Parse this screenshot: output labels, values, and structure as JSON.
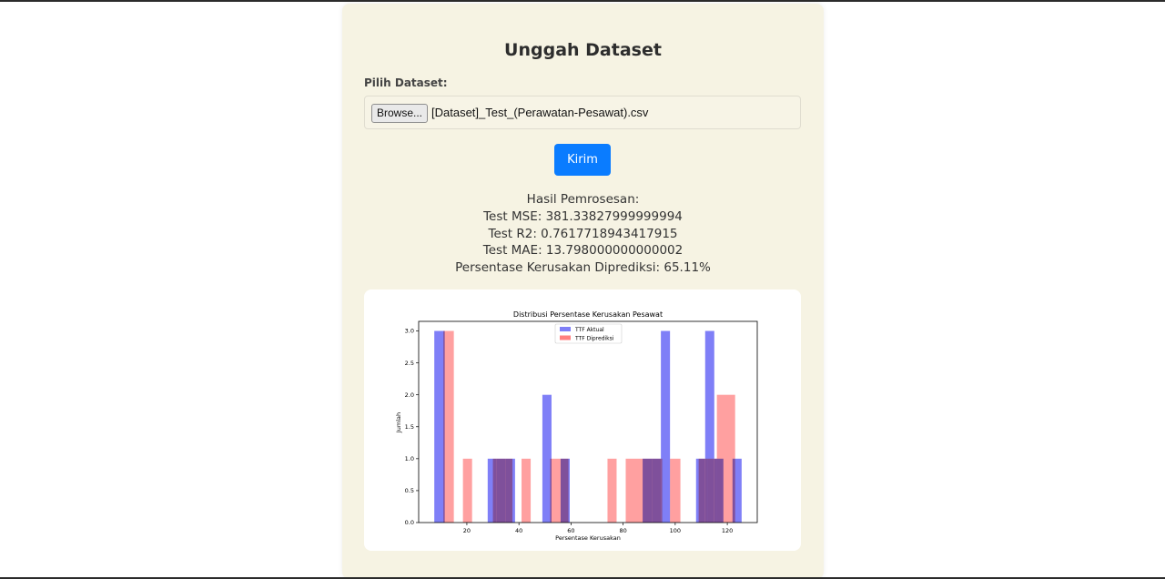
{
  "page": {
    "title": "Unggah Dataset",
    "file_label": "Pilih Dataset:",
    "browse_label": "Browse...",
    "file_name": "[Dataset]_Test_(Perawatan-Pesawat).csv",
    "submit_label": "Kirim"
  },
  "results": {
    "heading": "Hasil Pemrosesan:",
    "mse": "Test MSE: 381.33827999999994",
    "r2": "Test R2: 0.7617718943417915",
    "mae": "Test MAE: 13.798000000000002",
    "percent": "Persentase Kerusakan Diprediksi: 65.11%"
  },
  "colors": {
    "accent": "#0a7cff",
    "card_bg": "#f6f3e3",
    "actual": "#7f7ff7",
    "predicted": "#ff8080",
    "overlap": "#bf3f7b"
  },
  "chart_data": {
    "type": "bar",
    "title": "Distribusi Persentase Kerusakan Pesawat",
    "xlabel": "Persentase Kerusakan",
    "ylabel": "Jumlah",
    "xlim": [
      1.5,
      131.5
    ],
    "ylim": [
      0,
      3.15
    ],
    "xticks": [
      20,
      40,
      60,
      80,
      100,
      120
    ],
    "yticks": [
      0.0,
      0.5,
      1.0,
      1.5,
      2.0,
      2.5,
      3.0
    ],
    "ytick_labels": [
      "0.0",
      "0.5",
      "1.0",
      "1.5",
      "2.0",
      "2.5",
      "3.0"
    ],
    "legend": "top-center",
    "series": [
      {
        "name": "TTF Aktual",
        "bins": [
          {
            "x0": 7.5,
            "x1": 11.5,
            "value": 3
          },
          {
            "x0": 28,
            "x1": 31.5,
            "value": 1
          },
          {
            "x0": 31.5,
            "x1": 35,
            "value": 1
          },
          {
            "x0": 35,
            "x1": 38.5,
            "value": 1
          },
          {
            "x0": 49,
            "x1": 52.5,
            "value": 2
          },
          {
            "x0": 56,
            "x1": 59.5,
            "value": 1
          },
          {
            "x0": 87.5,
            "x1": 91,
            "value": 1
          },
          {
            "x0": 91,
            "x1": 94.5,
            "value": 1
          },
          {
            "x0": 94.5,
            "x1": 98,
            "value": 3
          },
          {
            "x0": 108,
            "x1": 111.5,
            "value": 1
          },
          {
            "x0": 111.5,
            "x1": 115,
            "value": 3
          },
          {
            "x0": 115,
            "x1": 118.5,
            "value": 1
          },
          {
            "x0": 122,
            "x1": 125.5,
            "value": 1
          }
        ]
      },
      {
        "name": "TTF Diprediksi",
        "bins": [
          {
            "x0": 11,
            "x1": 15,
            "value": 3
          },
          {
            "x0": 18.5,
            "x1": 22,
            "value": 1
          },
          {
            "x0": 30,
            "x1": 37.5,
            "value": 1
          },
          {
            "x0": 41,
            "x1": 44.5,
            "value": 1
          },
          {
            "x0": 52,
            "x1": 55.5,
            "value": 1
          },
          {
            "x0": 55.5,
            "x1": 59,
            "value": 1
          },
          {
            "x0": 74,
            "x1": 77.5,
            "value": 1
          },
          {
            "x0": 81,
            "x1": 84.5,
            "value": 1
          },
          {
            "x0": 84.5,
            "x1": 88,
            "value": 1
          },
          {
            "x0": 88,
            "x1": 95,
            "value": 1
          },
          {
            "x0": 98,
            "x1": 102,
            "value": 1
          },
          {
            "x0": 109,
            "x1": 112.5,
            "value": 1
          },
          {
            "x0": 112.5,
            "x1": 116,
            "value": 1
          },
          {
            "x0": 116,
            "x1": 123,
            "value": 2
          }
        ]
      }
    ]
  }
}
